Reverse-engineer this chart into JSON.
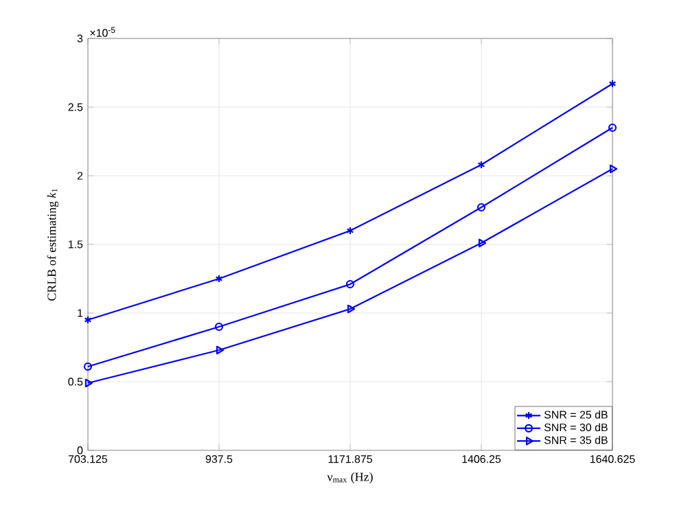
{
  "chart_data": {
    "type": "line",
    "xlabel": "ν$_{max}$ (Hz)",
    "ylabel": "CRLB of estimating *k*$_{1}$",
    "x": [
      703.125,
      937.5,
      1171.875,
      1406.25,
      1640.625
    ],
    "xlim": [
      703.125,
      1640.625
    ],
    "xticks": [
      703.125,
      937.5,
      1171.875,
      1406.25,
      1640.625
    ],
    "ylim": [
      0,
      3
    ],
    "yticks": [
      0,
      0.5,
      1,
      1.5,
      2,
      2.5,
      3
    ],
    "annotations": [
      "×10$^{-5}$"
    ],
    "grid": true,
    "legend": "bottom right",
    "line_style": "solid",
    "series": [
      {
        "name": "SNR = 25 dB",
        "color": "#0000ff",
        "marker": "cross",
        "values": [
          0.95,
          1.25,
          1.6,
          2.08,
          2.67
        ]
      },
      {
        "name": "SNR = 30 dB",
        "color": "#0000ff",
        "marker": "circle",
        "values": [
          0.61,
          0.9,
          1.21,
          1.77,
          2.35
        ]
      },
      {
        "name": "SNR = 35 dB",
        "color": "#0000ff",
        "marker": "triangle",
        "values": [
          0.49,
          0.73,
          1.03,
          1.51,
          2.05
        ]
      }
    ]
  }
}
